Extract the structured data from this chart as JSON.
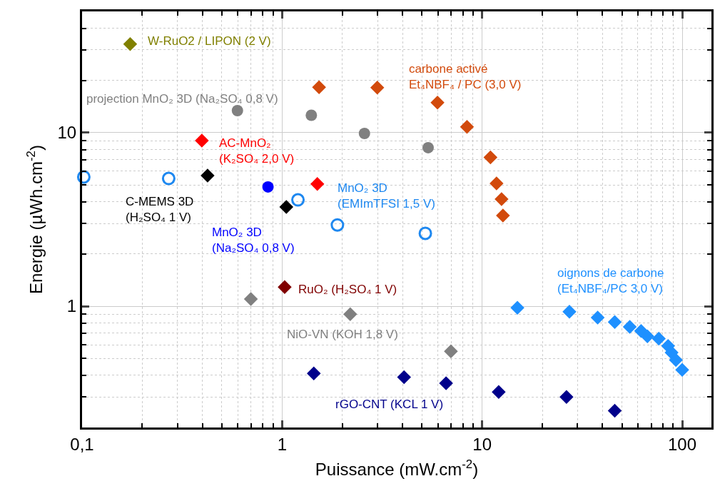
{
  "chart_data": {
    "type": "scatter",
    "xlabel": "Puissance (mW.cm$^{-2}$)",
    "ylabel": "Energie (µWh.cm$^{-2}$)",
    "log": "xy",
    "grid": true,
    "xlim": [
      0.1,
      140
    ],
    "ylim": [
      0.2,
      50
    ],
    "xticks": [
      {
        "value": 0.1,
        "label": "0,1"
      },
      1,
      10,
      100,
      {
        "value": 0.2,
        "label": null
      },
      {
        "value": 0.3,
        "label": null
      },
      {
        "value": 0.4,
        "label": null
      },
      {
        "value": 0.5,
        "label": null
      },
      {
        "value": 0.6,
        "label": null
      },
      {
        "value": 0.7,
        "label": null
      },
      {
        "value": 0.8,
        "label": null
      },
      {
        "value": 0.9,
        "label": null
      },
      {
        "value": 2,
        "label": null
      },
      {
        "value": 3,
        "label": null
      },
      {
        "value": 4,
        "label": null
      },
      {
        "value": 5,
        "label": null
      },
      {
        "value": 6,
        "label": null
      },
      {
        "value": 7,
        "label": null
      },
      {
        "value": 8,
        "label": null
      },
      {
        "value": 9,
        "label": null
      },
      {
        "value": 20,
        "label": null
      },
      {
        "value": 30,
        "label": null
      },
      {
        "value": 40,
        "label": null
      },
      {
        "value": 50,
        "label": null
      },
      {
        "value": 60,
        "label": null
      },
      {
        "value": 70,
        "label": null
      },
      {
        "value": 80,
        "label": null
      },
      {
        "value": 90,
        "label": null
      }
    ],
    "yticks": [
      1,
      10,
      {
        "value": 0.2,
        "label": null
      },
      {
        "value": 0.3,
        "label": null
      },
      {
        "value": 0.4,
        "label": null
      },
      {
        "value": 0.5,
        "label": null
      },
      {
        "value": 0.6,
        "label": null
      },
      {
        "value": 0.7,
        "label": null
      },
      {
        "value": 0.8,
        "label": null
      },
      {
        "value": 0.9,
        "label": null
      },
      {
        "value": 2,
        "label": null
      },
      {
        "value": 3,
        "label": null
      },
      {
        "value": 4,
        "label": null
      },
      {
        "value": 5,
        "label": null
      },
      {
        "value": 6,
        "label": null
      },
      {
        "value": 7,
        "label": null
      },
      {
        "value": 8,
        "label": null
      },
      {
        "value": 9,
        "label": null
      },
      {
        "value": 20,
        "label": null
      },
      {
        "value": 30,
        "label": null
      },
      {
        "value": 40,
        "label": null
      },
      {
        "value": 50,
        "label": null
      }
    ],
    "series": [
      {
        "name": "W-RuO2 / LIPON (2 V)",
        "color": "#808000",
        "marker": "diamond",
        "x": [
          0.174
        ],
        "values": [
          32.4
        ]
      },
      {
        "name": "carbone activé\nEt₄NBF₄ / PC (3,0 V)",
        "color": "#d24a0c",
        "marker": "diamond",
        "x": [
          1.53,
          2.99,
          5.98,
          8.4,
          11.0,
          11.8,
          12.5,
          12.7
        ],
        "values": [
          18.3,
          18.2,
          14.9,
          10.8,
          7.2,
          5.1,
          4.14,
          3.33
        ]
      },
      {
        "name": "projection MnO₂ 3D (Na₂SO₄ 0,8 V)",
        "color": "#808080",
        "marker": "circle",
        "x": [
          0.598,
          1.4,
          2.58,
          5.37
        ],
        "values": [
          13.4,
          12.6,
          9.9,
          8.2
        ]
      },
      {
        "name": "AC-MnO₂\n(K₂SO₄ 2,0 V)",
        "color": "#ff0000",
        "marker": "diamond",
        "x": [
          0.397,
          1.5
        ],
        "values": [
          9.0,
          5.06
        ]
      },
      {
        "name": "C-MEMS 3D\n(H₂SO₄ 1 V)",
        "color": "#000000",
        "marker": "diamond",
        "x": [
          0.424,
          1.05
        ],
        "values": [
          5.66,
          3.73
        ]
      },
      {
        "name": "MnO₂ 3D\n(Na₂SO₄ 0,8 V)",
        "color": "#0000ff",
        "marker": "circle",
        "x": [
          0.85
        ],
        "values": [
          4.87
        ]
      },
      {
        "name": "MnO₂ 3D\n(EMImTFSI 1,5 V)",
        "color": "#1e88f0",
        "marker": "circle-open",
        "x": [
          0.102,
          0.271,
          1.2,
          1.89,
          5.2
        ],
        "values": [
          5.56,
          5.45,
          4.1,
          2.94,
          2.63
        ]
      },
      {
        "name": "RuO₂ (H₂SO₄ 1 V)",
        "color": "#800000",
        "marker": "diamond",
        "x": [
          1.03
        ],
        "values": [
          1.29
        ]
      },
      {
        "name": "NiO-VN (KOH 1,8 V)",
        "color": "#808080",
        "marker": "diamond",
        "x": [
          0.698,
          2.19,
          6.98
        ],
        "values": [
          1.1,
          0.9,
          0.55
        ]
      },
      {
        "name": "rGO-CNT (KCL 1 V)",
        "color": "#00008b",
        "marker": "diamond",
        "x": [
          1.44,
          4.07,
          6.6,
          12.1,
          26.4,
          46
        ],
        "values": [
          0.41,
          0.39,
          0.36,
          0.32,
          0.3,
          0.25
        ]
      },
      {
        "name": "oignons de carbone\n(Et₄NBF₄/PC 3,0 V)",
        "color": "#1e90ff",
        "marker": "diamond",
        "x": [
          15.0,
          27.3,
          37.8,
          46,
          54.7,
          62.3,
          67,
          76.4,
          85,
          88.5,
          93,
          100
        ],
        "values": [
          0.98,
          0.93,
          0.86,
          0.81,
          0.76,
          0.72,
          0.67,
          0.65,
          0.59,
          0.54,
          0.49,
          0.43
        ]
      }
    ]
  }
}
